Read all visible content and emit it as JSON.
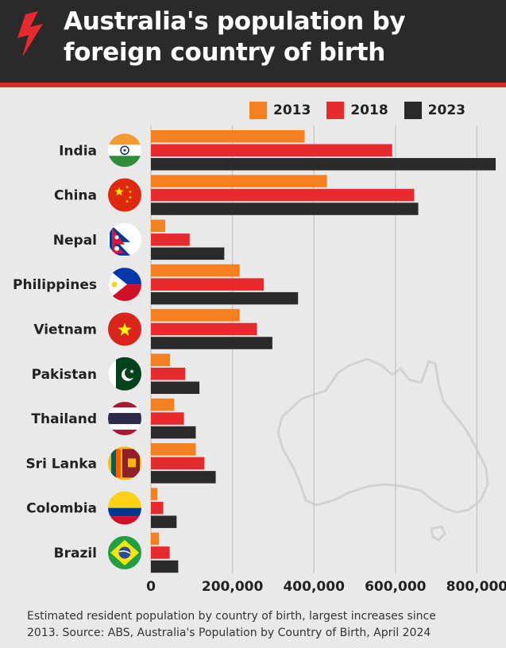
{
  "title": {
    "line1": "Australia's population by",
    "line2": "foreign country of birth"
  },
  "footer": {
    "line1": "Estimated resident population by country of birth, largest increases since",
    "line2": "2013.  Source: ABS, Australia's Population by Country of Birth, April 2024"
  },
  "colors": {
    "2013": "#f5801f",
    "2018": "#e62a2d",
    "2023": "#2a2a2a"
  },
  "chart_data": {
    "type": "bar",
    "orientation": "horizontal",
    "categories": [
      "India",
      "China",
      "Nepal",
      "Philippines",
      "Vietnam",
      "Pakistan",
      "Thailand",
      "Sri Lanka",
      "Colombia",
      "Brazil"
    ],
    "series": [
      {
        "name": "2013",
        "values": [
          377000,
          432000,
          35000,
          218000,
          218000,
          47000,
          57000,
          110000,
          16000,
          20000
        ]
      },
      {
        "name": "2018",
        "values": [
          592000,
          646000,
          95000,
          277000,
          260000,
          84000,
          81000,
          131000,
          30000,
          46000
        ]
      },
      {
        "name": "2023",
        "values": [
          846000,
          656000,
          180000,
          361000,
          298000,
          119000,
          110000,
          159000,
          63000,
          67000
        ]
      }
    ],
    "xlim": [
      0,
      846000
    ],
    "xticks": [
      0,
      200000,
      400000,
      600000,
      800000
    ],
    "xtick_labels": [
      "0",
      "200,000",
      "400,000",
      "600,000",
      "800,000"
    ],
    "legend_position": "top-right",
    "grid": "vertical",
    "flags": [
      "india-flag",
      "china-flag",
      "nepal-flag",
      "philippines-flag",
      "vietnam-flag",
      "pakistan-flag",
      "thailand-flag",
      "sri-lanka-flag",
      "colombia-flag",
      "brazil-flag"
    ]
  }
}
